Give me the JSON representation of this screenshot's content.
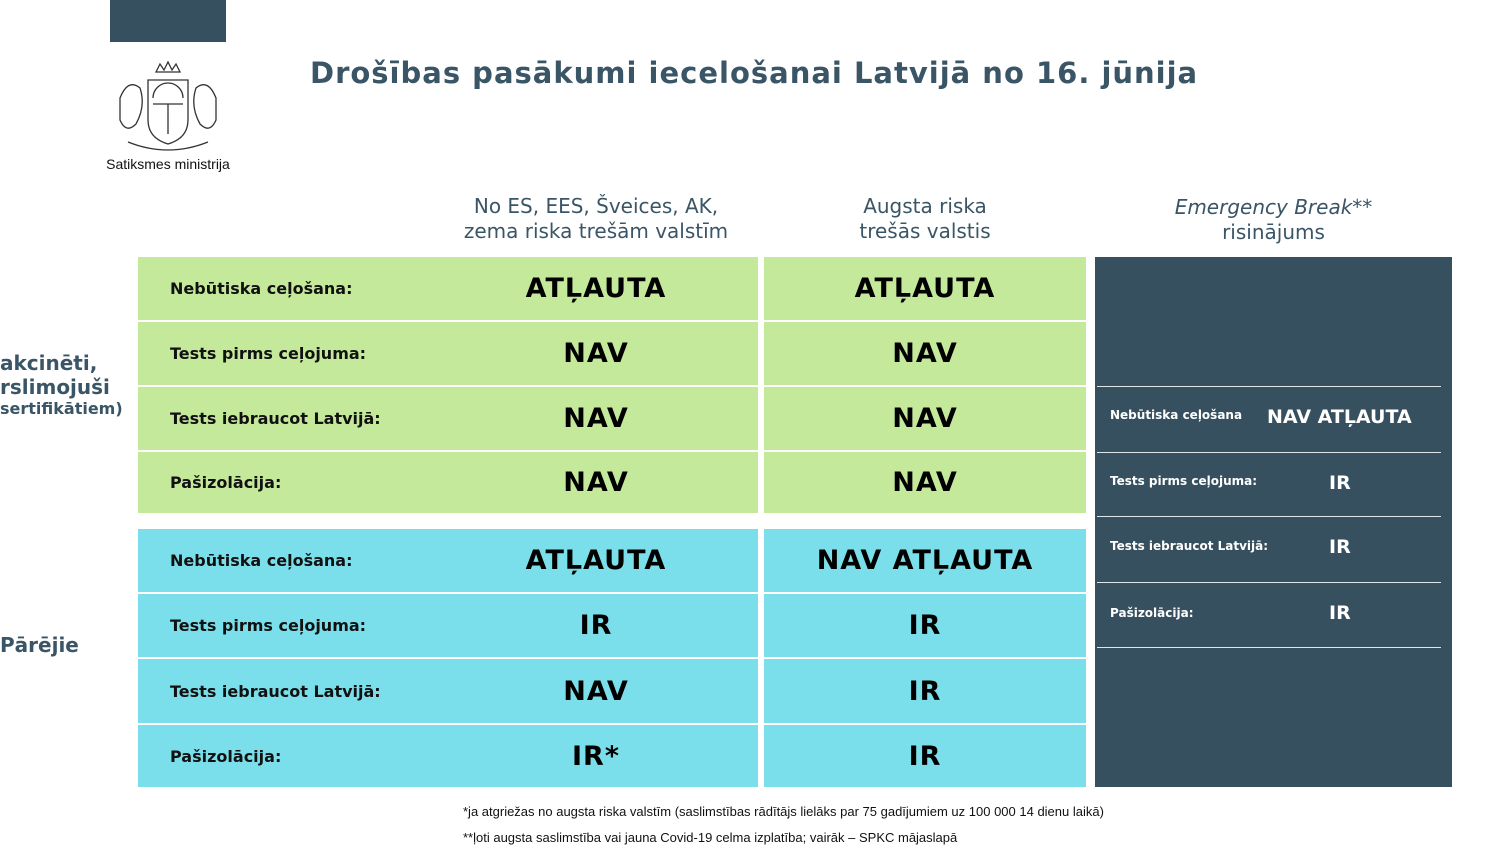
{
  "header": {
    "title": "Drošības pasākumi iecelošanai Latvijā no 16. jūnija",
    "ministry": "Satiksmes ministrija",
    "logo": "latvia-coat-of-arms"
  },
  "columns": [
    {
      "line1": "No ES, EES, Šveices, AK,",
      "line2": "zema riska trešām valstīm"
    },
    {
      "line1": "Augsta riska",
      "line2": "trešās valstis"
    },
    {
      "line1": "Emergency Break**",
      "line2": "risinājums"
    }
  ],
  "groups": [
    {
      "label_lines": [
        "akcinēti,",
        "rslimojuši",
        "sertifikātiem)"
      ],
      "rows": [
        {
          "label": "Nebūtiska ceļošana:",
          "c1": "ATĻAUTA",
          "c2": "ATĻAUTA"
        },
        {
          "label": "Tests pirms ceļojuma:",
          "c1": "NAV",
          "c2": "NAV"
        },
        {
          "label": "Tests iebraucot Latvijā:",
          "c1": "NAV",
          "c2": "NAV"
        },
        {
          "label": "Pašizolācija:",
          "c1": "NAV",
          "c2": "NAV"
        }
      ]
    },
    {
      "label_lines": [
        "Pārējie"
      ],
      "rows": [
        {
          "label": "Nebūtiska ceļošana:",
          "c1": "ATĻAUTA",
          "c2": "NAV ATĻAUTA"
        },
        {
          "label": "Tests pirms ceļojuma:",
          "c1": "IR",
          "c2": "IR"
        },
        {
          "label": "Tests iebraucot Latvijā:",
          "c1": "NAV",
          "c2": "IR"
        },
        {
          "label": "Pašizolācija:",
          "c1": "IR*",
          "c2": "IR"
        }
      ]
    }
  ],
  "emergency": [
    {
      "label": "Nebūtiska ceļošana",
      "value": "NAV ATĻAUTA"
    },
    {
      "label": "Tests pirms ceļojuma:",
      "value": "IR"
    },
    {
      "label": "Tests iebraucot Latvijā:",
      "value": "IR"
    },
    {
      "label": "Pašizolācija:",
      "value": "IR"
    }
  ],
  "footnotes": [
    "*ja atgriežas no augsta riska valstīm (saslimstības rādītājs lielāks par 75 gadījumiem  uz 100 000 14 dienu laikā)",
    "**ļoti augsta saslimstība  vai jauna Covid-19 celma izplatība;  vairāk – SPKC mājaslapā"
  ],
  "colors": {
    "green": "#c5e99b",
    "blue": "#7adfea",
    "dark": "#36505f",
    "title": "#3a5566"
  }
}
